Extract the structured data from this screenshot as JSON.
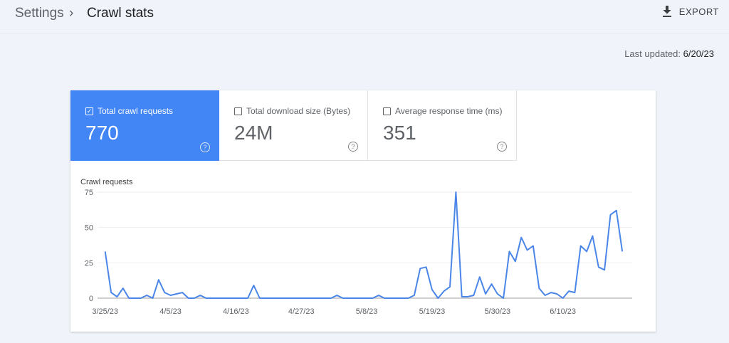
{
  "header": {
    "breadcrumb_parent": "Settings",
    "separator": "›",
    "title": "Crawl stats",
    "export_label": "EXPORT",
    "export_icon": "download-icon"
  },
  "last_updated": {
    "label": "Last updated:",
    "value": "6/20/23"
  },
  "metrics": [
    {
      "label": "Total crawl requests",
      "value": "770",
      "checked": true
    },
    {
      "label": "Total download size (Bytes)",
      "value": "24M",
      "checked": false
    },
    {
      "label": "Average response time (ms)",
      "value": "351",
      "checked": false
    }
  ],
  "colors": {
    "accent": "#4285f4",
    "line": "#4a86e8"
  },
  "chart_data": {
    "type": "line",
    "title": "Crawl requests",
    "ylim": [
      0,
      75
    ],
    "yticks": [
      0,
      25,
      50,
      75
    ],
    "grid": true,
    "xtick_labels": [
      "3/25/23",
      "4/5/23",
      "4/16/23",
      "4/27/23",
      "5/8/23",
      "5/19/23",
      "5/30/23",
      "6/10/23"
    ],
    "x": [
      "3/25/23",
      "3/26/23",
      "3/27/23",
      "3/28/23",
      "3/29/23",
      "3/30/23",
      "3/31/23",
      "4/1/23",
      "4/2/23",
      "4/3/23",
      "4/4/23",
      "4/5/23",
      "4/6/23",
      "4/7/23",
      "4/8/23",
      "4/9/23",
      "4/10/23",
      "4/11/23",
      "4/12/23",
      "4/13/23",
      "4/14/23",
      "4/15/23",
      "4/16/23",
      "4/17/23",
      "4/18/23",
      "4/19/23",
      "4/20/23",
      "4/21/23",
      "4/22/23",
      "4/23/23",
      "4/24/23",
      "4/25/23",
      "4/26/23",
      "4/27/23",
      "4/28/23",
      "4/29/23",
      "4/30/23",
      "5/1/23",
      "5/2/23",
      "5/3/23",
      "5/4/23",
      "5/5/23",
      "5/6/23",
      "5/7/23",
      "5/8/23",
      "5/9/23",
      "5/10/23",
      "5/11/23",
      "5/12/23",
      "5/13/23",
      "5/14/23",
      "5/15/23",
      "5/16/23",
      "5/17/23",
      "5/18/23",
      "5/19/23",
      "5/20/23",
      "5/21/23",
      "5/22/23",
      "5/23/23",
      "5/24/23",
      "5/25/23",
      "5/26/23",
      "5/27/23",
      "5/28/23",
      "5/29/23",
      "5/30/23",
      "5/31/23",
      "6/1/23",
      "6/2/23",
      "6/3/23",
      "6/4/23",
      "6/5/23",
      "6/6/23",
      "6/7/23",
      "6/8/23",
      "6/9/23",
      "6/10/23",
      "6/11/23",
      "6/12/23",
      "6/13/23",
      "6/14/23",
      "6/15/23",
      "6/16/23",
      "6/17/23",
      "6/18/23",
      "6/19/23",
      "6/20/23"
    ],
    "values": [
      33,
      4,
      1,
      7,
      0,
      0,
      0,
      2,
      0,
      13,
      4,
      2,
      3,
      4,
      0,
      0,
      2,
      0,
      0,
      0,
      0,
      0,
      0,
      0,
      0,
      9,
      0,
      0,
      0,
      0,
      0,
      0,
      0,
      0,
      0,
      0,
      0,
      0,
      0,
      2,
      0,
      0,
      0,
      0,
      0,
      0,
      2,
      0,
      0,
      0,
      0,
      0,
      2,
      21,
      22,
      6,
      0,
      5,
      8,
      75,
      1,
      1,
      2,
      15,
      3,
      10,
      3,
      0,
      33,
      26,
      43,
      34,
      37,
      7,
      2,
      4,
      3,
      0,
      5,
      4,
      37,
      33,
      44,
      22,
      20,
      59,
      62,
      33
    ]
  }
}
